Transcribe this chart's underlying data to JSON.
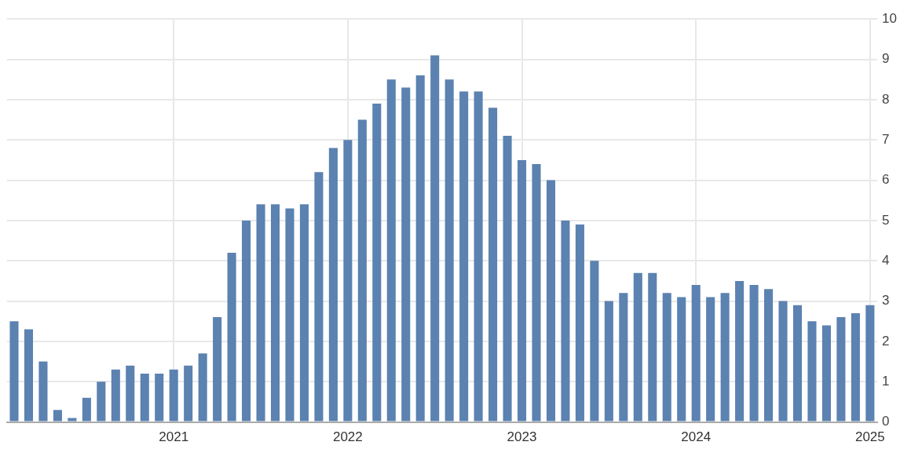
{
  "chart_data": {
    "type": "bar",
    "categories": [
      null,
      null,
      null,
      null,
      null,
      null,
      null,
      null,
      null,
      null,
      null,
      "2021",
      null,
      null,
      null,
      null,
      null,
      null,
      null,
      null,
      null,
      null,
      null,
      "2022",
      null,
      null,
      null,
      null,
      null,
      null,
      null,
      null,
      null,
      null,
      null,
      "2023",
      null,
      null,
      null,
      null,
      null,
      null,
      null,
      null,
      null,
      null,
      null,
      "2024",
      null,
      null,
      null,
      null,
      null,
      null,
      null,
      null,
      null,
      null,
      null,
      "2025"
    ],
    "values": [
      2.5,
      2.3,
      1.5,
      0.3,
      0.1,
      0.6,
      1.0,
      1.3,
      1.4,
      1.2,
      1.2,
      1.3,
      1.4,
      1.7,
      2.6,
      4.2,
      5.0,
      5.4,
      5.4,
      5.3,
      5.4,
      6.2,
      6.8,
      7.0,
      7.5,
      7.9,
      8.5,
      8.3,
      8.6,
      9.1,
      8.5,
      8.2,
      8.2,
      7.8,
      7.1,
      6.5,
      6.4,
      6.0,
      5.0,
      4.9,
      4.0,
      3.0,
      3.2,
      3.7,
      3.7,
      3.2,
      3.1,
      3.4,
      3.1,
      3.2,
      3.5,
      3.4,
      3.3,
      3.0,
      2.9,
      2.5,
      2.4,
      2.6,
      2.7,
      2.9
    ],
    "color": "#5b82b0",
    "ylim": [
      0,
      10
    ],
    "yticks": [
      0,
      1,
      2,
      3,
      4,
      5,
      6,
      7,
      8,
      9,
      10
    ],
    "grid": true
  }
}
